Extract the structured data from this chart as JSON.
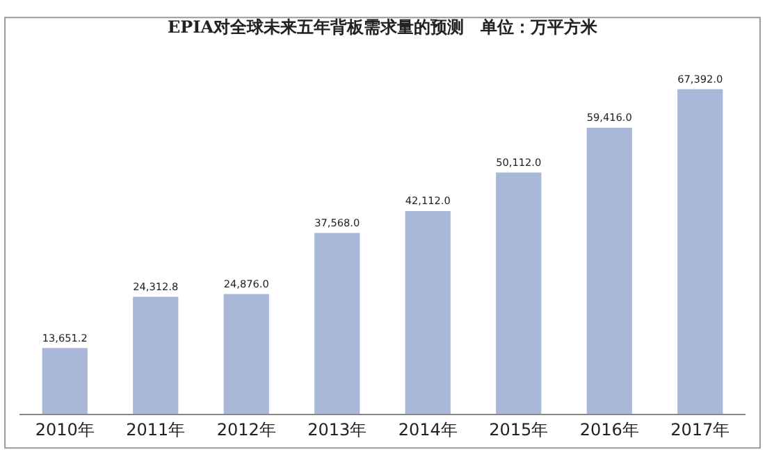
{
  "chart_data": {
    "type": "bar",
    "title": "EPIA对全球未来五年背板需求量的预测　单位：万平方米",
    "categories": [
      "2010年",
      "2011年",
      "2012年",
      "2013年",
      "2014年",
      "2015年",
      "2016年",
      "2017年"
    ],
    "values": [
      13651.2,
      24312.8,
      24876.0,
      37568.0,
      42112.0,
      50112.0,
      59416.0,
      67392.0
    ],
    "value_labels": [
      "13,651.2",
      "24,312.8",
      "24,876.0",
      "37,568.0",
      "42,112.0",
      "50,112.0",
      "59,416.0",
      "67,392.0"
    ],
    "color": "#a9b8d8",
    "legend": false
  }
}
